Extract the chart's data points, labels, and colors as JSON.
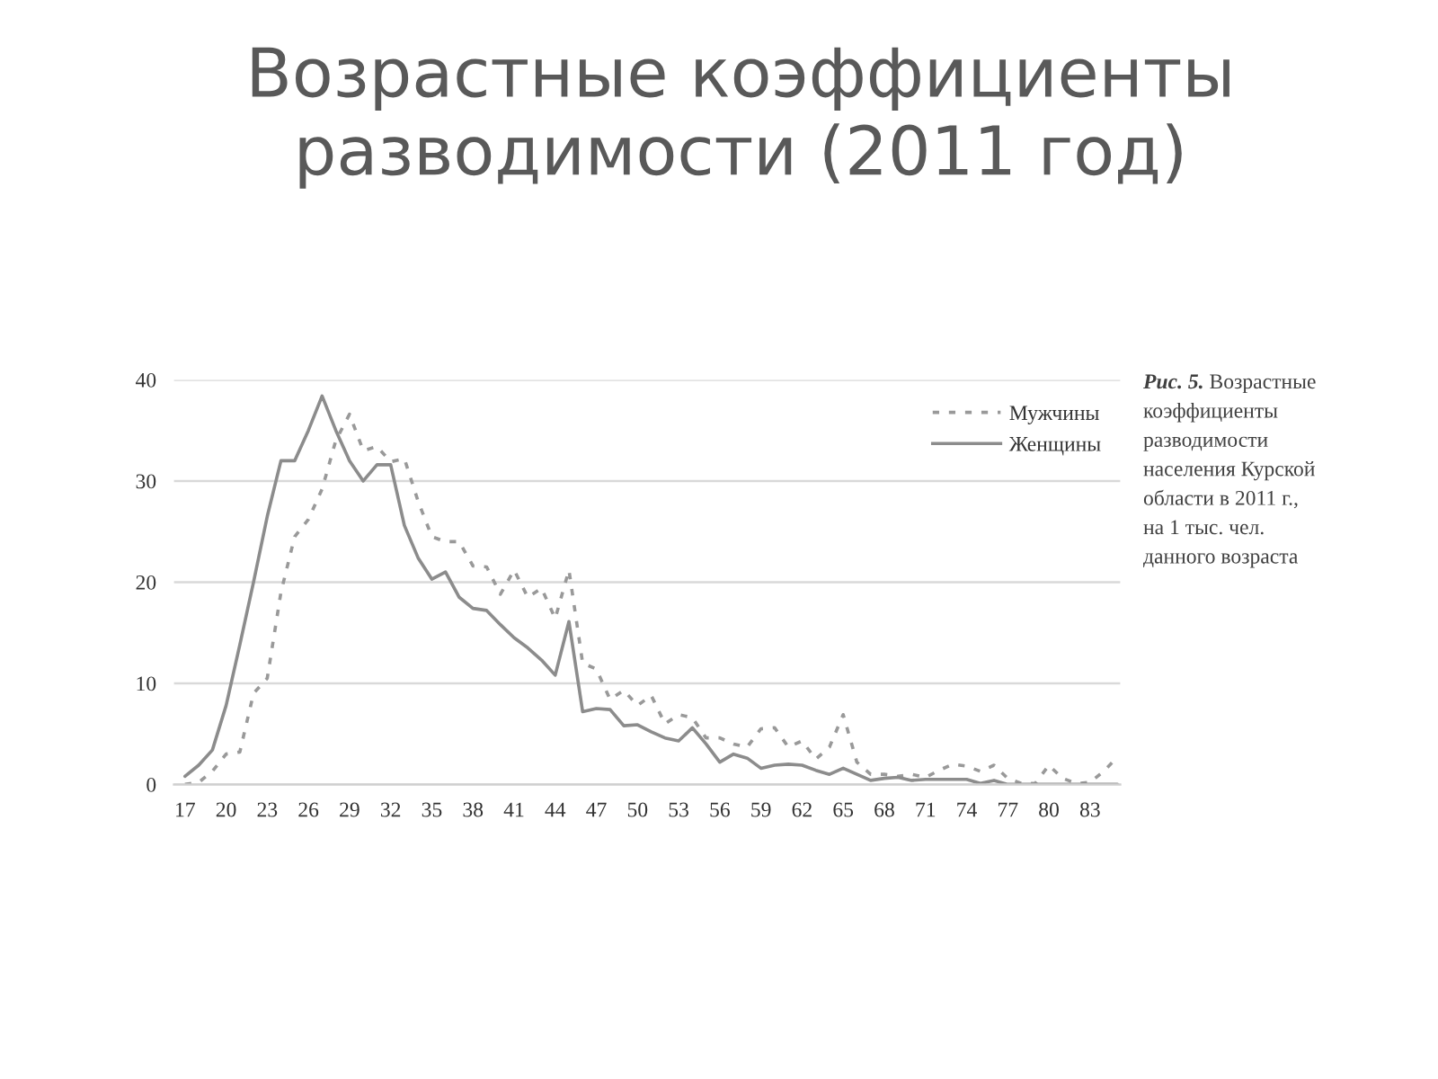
{
  "chart_data": {
    "type": "line",
    "title": "Возрастные коэффициенты\nразводимости (2011 год)",
    "annotations": [
      "Рис. 5.",
      "Возрастные\nкоэффициенты\nразводимости\nнаселения Курской\nобласти в 2011 г.,\nна 1 тыс. чел.\nданного возраста"
    ],
    "x": [
      17,
      18,
      19,
      20,
      21,
      22,
      23,
      24,
      25,
      26,
      27,
      28,
      29,
      30,
      31,
      32,
      33,
      34,
      35,
      36,
      37,
      38,
      39,
      40,
      41,
      42,
      43,
      44,
      45,
      46,
      47,
      48,
      49,
      50,
      51,
      52,
      53,
      54,
      55,
      56,
      57,
      58,
      59,
      60,
      61,
      62,
      63,
      64,
      65,
      66,
      67,
      68,
      69,
      70,
      71,
      72,
      73,
      74,
      75,
      76,
      77,
      78,
      79,
      80,
      81,
      82,
      83,
      84,
      85
    ],
    "series": [
      {
        "name": "Мужчины",
        "color": "#999999",
        "line_style": "dashed",
        "values": [
          0,
          0.2,
          1.3,
          3,
          3.2,
          9,
          10.5,
          19,
          24.5,
          26.2,
          29.2,
          34,
          36.6,
          33,
          33.4,
          31.9,
          32.2,
          28,
          24.5,
          24,
          24,
          21.6,
          21.5,
          18.8,
          21.2,
          18.5,
          19.4,
          16.4,
          21.2,
          12,
          11.4,
          8.4,
          9.3,
          7.8,
          8.8,
          6,
          6.9,
          6.6,
          4.6,
          4.6,
          4,
          3.7,
          5.5,
          5.6,
          3.7,
          4.3,
          2.5,
          3.7,
          6.9,
          2.2,
          1,
          1,
          0.8,
          1,
          0.7,
          1.4,
          2,
          1.8,
          1.3,
          1.9,
          0.6,
          0.1,
          0.1,
          1.9,
          0.6,
          0.1,
          0.2,
          1.3,
          2.7
        ]
      },
      {
        "name": "Женщины",
        "color": "#8c8c8c",
        "line_style": "solid",
        "values": [
          0.8,
          1.9,
          3.4,
          7.8,
          13.8,
          20,
          26.5,
          32,
          32,
          35,
          38.4,
          35,
          32,
          30,
          31.6,
          31.6,
          25.6,
          22.4,
          20.3,
          21,
          18.5,
          17.4,
          17.2,
          15.8,
          14.5,
          13.5,
          12.3,
          10.8,
          16.1,
          7.2,
          7.5,
          7.4,
          5.8,
          5.9,
          5.2,
          4.6,
          4.3,
          5.6,
          4,
          2.2,
          3,
          2.6,
          1.6,
          1.9,
          2,
          1.9,
          1.4,
          1,
          1.6,
          1,
          0.4,
          0.6,
          0.7,
          0.4,
          0.5,
          0.5,
          0.5,
          0.5,
          0.1,
          0.4,
          0,
          0,
          0,
          0,
          0,
          0,
          0,
          0,
          0
        ]
      }
    ],
    "xlim": [
      16.2,
      85.2
    ],
    "xticks": [
      17,
      20,
      23,
      26,
      29,
      32,
      35,
      38,
      41,
      44,
      47,
      50,
      53,
      56,
      59,
      62,
      65,
      68,
      71,
      74,
      77,
      80,
      83
    ],
    "ylim": [
      0,
      40
    ],
    "yticks": [
      0,
      10,
      20,
      30,
      40
    ],
    "grid": "y",
    "legend": "top right"
  }
}
